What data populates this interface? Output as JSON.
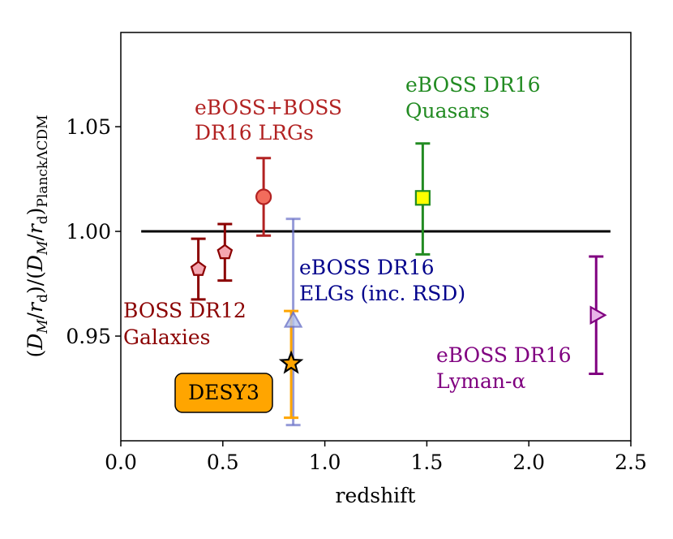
{
  "chart_data": {
    "type": "scatter",
    "xlabel": "redshift",
    "ylabel_main": "(D",
    "ylabel_parts": {
      "open": "(",
      "D": "D",
      "M": "M",
      "slash": "/",
      "r": "r",
      "d": "d",
      "close": ")",
      "sub": "PlanckΛCDM"
    },
    "xlim": [
      0.0,
      2.5
    ],
    "ylim": [
      0.9,
      1.095
    ],
    "xticks": [
      "0.0",
      "0.5",
      "1.0",
      "1.5",
      "2.0",
      "2.5"
    ],
    "xtick_values": [
      0.0,
      0.5,
      1.0,
      1.5,
      2.0,
      2.5
    ],
    "yticks": [
      "0.95",
      "1.00",
      "1.05"
    ],
    "ytick_values": [
      0.95,
      1.0,
      1.05
    ],
    "reference_line": {
      "y": 1.0,
      "x_range": [
        0.1,
        2.4
      ],
      "color": "#000000"
    },
    "series": [
      {
        "name": "BOSS DR12 Galaxies",
        "x": 0.38,
        "y": 0.982,
        "yerr_low": 0.9675,
        "yerr_high": 0.9965,
        "marker": "pentagon",
        "color": "#8b0000",
        "fill": "#f4a6b0"
      },
      {
        "name": "BOSS DR12 Galaxies",
        "x": 0.51,
        "y": 0.99,
        "yerr_low": 0.9765,
        "yerr_high": 1.0035,
        "marker": "pentagon",
        "color": "#8b0000",
        "fill": "#f4a6b0"
      },
      {
        "name": "eBOSS+BOSS DR16 LRGs",
        "x": 0.7,
        "y": 1.0165,
        "yerr_low": 0.998,
        "yerr_high": 1.035,
        "marker": "circle",
        "color": "#b22222",
        "fill": "#f26c5c"
      },
      {
        "name": "eBOSS DR16 ELGs (inc. RSD)",
        "x": 0.845,
        "y": 0.957,
        "yerr_low": 0.9075,
        "yerr_high": 1.006,
        "marker": "triangle-up",
        "color": "#6a72c8",
        "fill": "#b4c4ee"
      },
      {
        "name": "DESY3",
        "x": 0.835,
        "y": 0.937,
        "yerr_low": 0.911,
        "yerr_high": 0.962,
        "marker": "star",
        "color": "#ffa500",
        "fill": "#ffa500"
      },
      {
        "name": "eBOSS DR16 Quasars",
        "x": 1.48,
        "y": 1.016,
        "yerr_low": 0.989,
        "yerr_high": 1.042,
        "marker": "square",
        "color": "#228b22",
        "fill": "#ffff00"
      },
      {
        "name": "eBOSS DR16 Lyman-α",
        "x": 2.33,
        "y": 0.96,
        "yerr_low": 0.932,
        "yerr_high": 0.988,
        "marker": "triangle-right",
        "color": "#800080",
        "fill": "#e8b4e8"
      }
    ],
    "annotations": {
      "lrg_line1": "eBOSS+BOSS",
      "lrg_line2": "DR16 LRGs",
      "qso_line1": "eBOSS DR16",
      "qso_line2": "Quasars",
      "elg_line1": "eBOSS DR16",
      "elg_line2": "ELGs (inc. RSD)",
      "boss_line1": "BOSS DR12",
      "boss_line2": "Galaxies",
      "lya_line1": "eBOSS DR16",
      "lya_line2": "Lyman-α",
      "desy3": "DESY3"
    },
    "colors": {
      "lrg": "#b22222",
      "qso": "#228b22",
      "elg": "#00008b",
      "boss": "#8b0000",
      "lya": "#800080",
      "desy3_box": "#ffa500"
    }
  }
}
